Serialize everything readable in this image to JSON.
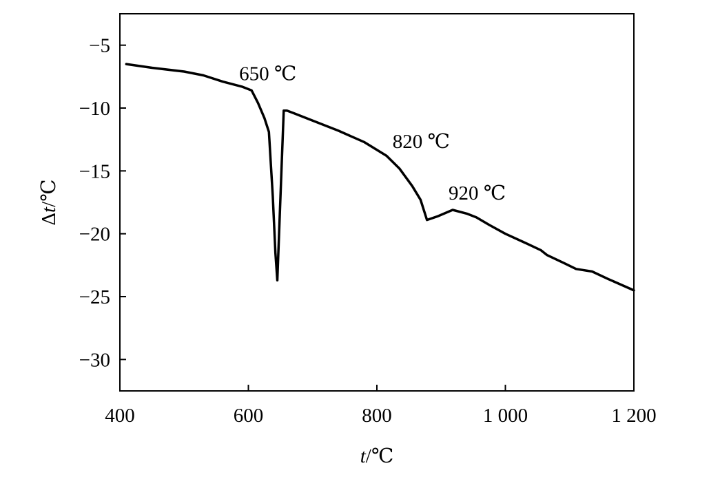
{
  "chart_data": {
    "type": "line",
    "title": "",
    "xlabel": {
      "var": "t",
      "unit": "/℃"
    },
    "ylabel": {
      "prefix": "Δ",
      "var": "t",
      "unit": "/℃"
    },
    "xlim": [
      400,
      1200
    ],
    "ylim": [
      -32.5,
      -2.5
    ],
    "xticks": [
      400,
      600,
      800,
      1000,
      1200
    ],
    "xtick_labels": [
      "400",
      "600",
      "800",
      "1 000",
      "1 200"
    ],
    "yticks": [
      -5,
      -10,
      -15,
      -20,
      -25,
      -30
    ],
    "ytick_labels": [
      "−5",
      "−10",
      "−15",
      "−20",
      "−25",
      "−30"
    ],
    "grid": false,
    "series": [
      {
        "x": [
          410,
          450,
          500,
          530,
          560,
          590,
          605,
          615,
          625,
          632,
          638,
          642,
          645,
          650,
          655,
          660,
          670,
          700,
          740,
          780,
          815,
          835,
          855,
          868,
          878,
          895,
          918,
          940,
          955,
          975,
          1000,
          1030,
          1055,
          1065,
          1090,
          1110,
          1135,
          1160,
          1200
        ],
        "y": [
          -6.5,
          -6.8,
          -7.1,
          -7.4,
          -7.9,
          -8.3,
          -8.6,
          -9.6,
          -10.8,
          -11.9,
          -17.0,
          -21.5,
          -23.7,
          -17.0,
          -10.2,
          -10.2,
          -10.4,
          -11.0,
          -11.8,
          -12.7,
          -13.8,
          -14.8,
          -16.2,
          -17.3,
          -18.9,
          -18.6,
          -18.1,
          -18.4,
          -18.7,
          -19.3,
          -20.0,
          -20.7,
          -21.3,
          -21.7,
          -22.3,
          -22.8,
          -23.0,
          -23.6,
          -24.5
        ]
      }
    ],
    "annotations": [
      {
        "text": "650 ℃",
        "x": 605,
        "y": -8.6
      },
      {
        "text": "820 ℃",
        "x": 818,
        "y": -14.0
      },
      {
        "text": "920 ℃",
        "x": 918,
        "y": -18.1
      }
    ]
  }
}
